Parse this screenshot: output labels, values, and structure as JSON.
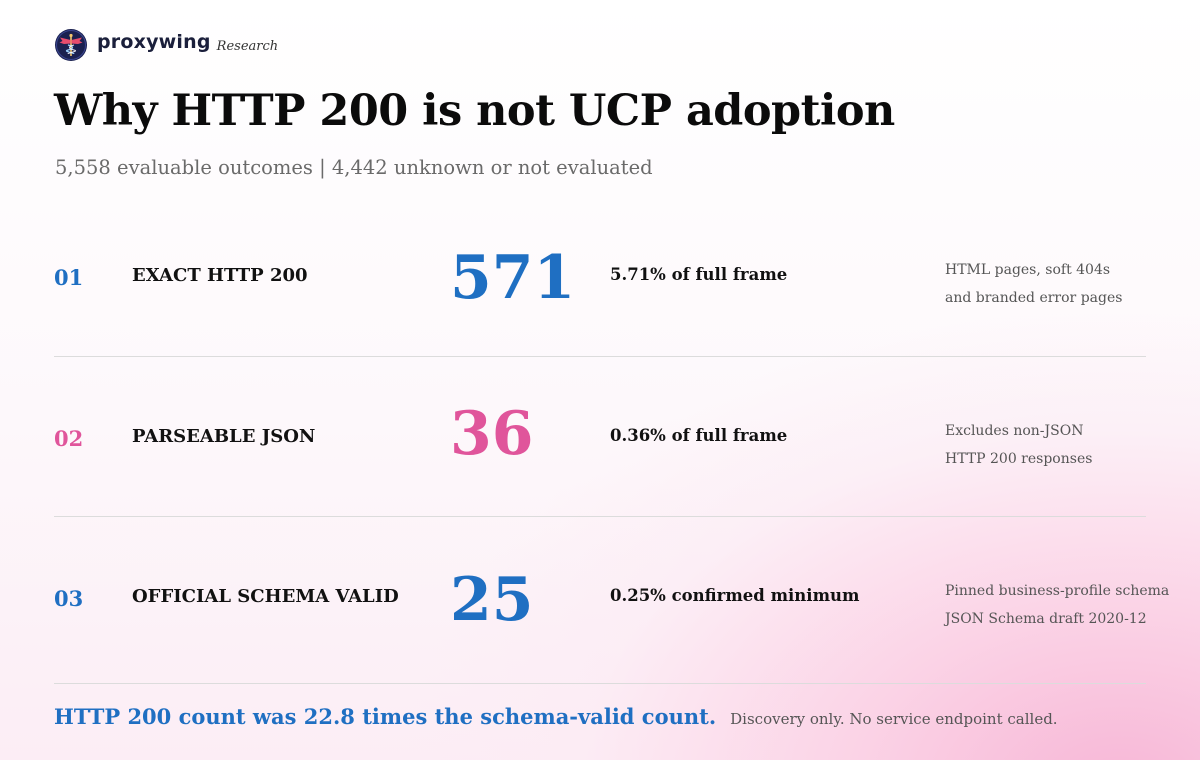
{
  "brand": {
    "name": "proxywing",
    "tag": "Research",
    "logo_icon": "winged-caduceus-logo"
  },
  "title": "Why HTTP 200 is not UCP adoption",
  "subtitle": "5,558 evaluable outcomes | 4,442 unknown or not evaluated",
  "colors": {
    "blue": "#1f6fc2",
    "pink": "#e0559b",
    "navy": "#1b1f3b"
  },
  "rows": [
    {
      "index": "01",
      "label": "EXACT HTTP 200",
      "count": "571",
      "percent_text": "5.71% of full frame",
      "note": [
        "HTML pages, soft 404s",
        "and branded error pages"
      ],
      "accent": "#1f6fc2"
    },
    {
      "index": "02",
      "label": "PARSEABLE JSON",
      "count": "36",
      "percent_text": "0.36% of full frame",
      "note": [
        "Excludes non-JSON",
        "HTTP 200 responses"
      ],
      "accent": "#e0559b"
    },
    {
      "index": "03",
      "label": "OFFICIAL SCHEMA VALID",
      "count": "25",
      "percent_text": "0.25% confirmed minimum",
      "note": [
        "Pinned business-profile schema",
        "JSON Schema draft 2020-12"
      ],
      "accent": "#1f6fc2"
    }
  ],
  "footer": {
    "headline": "HTTP 200 count was 22.8 times the schema-valid count.",
    "note": "Discovery only. No service endpoint called."
  }
}
